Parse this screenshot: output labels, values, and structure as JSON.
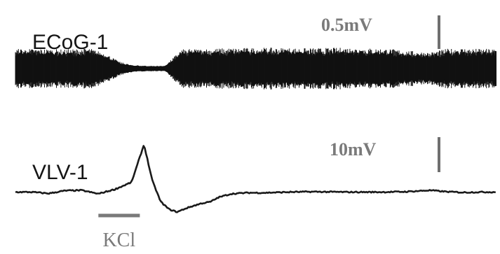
{
  "chart_data": [
    {
      "type": "line",
      "title": "",
      "series": [
        {
          "name": "ECoG-1",
          "kind": "band",
          "color": "#111111",
          "x": [
            0,
            3,
            6,
            9,
            11,
            12.5,
            14,
            16,
            18,
            20,
            25,
            30,
            35,
            40,
            45,
            48,
            50,
            52,
            54,
            56,
            58
          ],
          "amplitude": [
            0.34,
            0.34,
            0.33,
            0.35,
            0.25,
            0.12,
            0.06,
            0.04,
            0.04,
            0.33,
            0.35,
            0.36,
            0.35,
            0.36,
            0.34,
            0.3,
            0.28,
            0.34,
            0.35,
            0.34,
            0.34
          ]
        }
      ],
      "scale_bar": {
        "value": 0.5,
        "unit": "mV",
        "label": "0.5mV"
      }
    },
    {
      "type": "line",
      "title": "",
      "series": [
        {
          "name": "VLV-1",
          "color": "#1a1a1a",
          "x": [
            0,
            2,
            4,
            6,
            8,
            10,
            12,
            14,
            15.5,
            16.5,
            17.5,
            18.5,
            19.5,
            20.5,
            21.5,
            22.5,
            23.5,
            24.5,
            26,
            28,
            30,
            33,
            36,
            40,
            44,
            47,
            50,
            52,
            54,
            56,
            58
          ],
          "y": [
            -0.3,
            -0.3,
            -0.7,
            0.1,
            0.2,
            -0.8,
            0.5,
            2.5,
            13.3,
            3.0,
            -3.0,
            -5.2,
            -6.0,
            -5.0,
            -4.2,
            -3.5,
            -3.1,
            -1.8,
            -0.8,
            -0.5,
            -0.5,
            -0.3,
            -0.2,
            -0.3,
            -0.3,
            -0.2,
            0.2,
            -0.2,
            -0.4,
            -0.3,
            -0.3
          ]
        }
      ],
      "scale_bar": {
        "value": 10,
        "unit": "mV",
        "label": "10mV"
      },
      "annotations": [
        {
          "label": "KCl",
          "x_start": 10,
          "x_end": 15
        }
      ]
    }
  ]
}
